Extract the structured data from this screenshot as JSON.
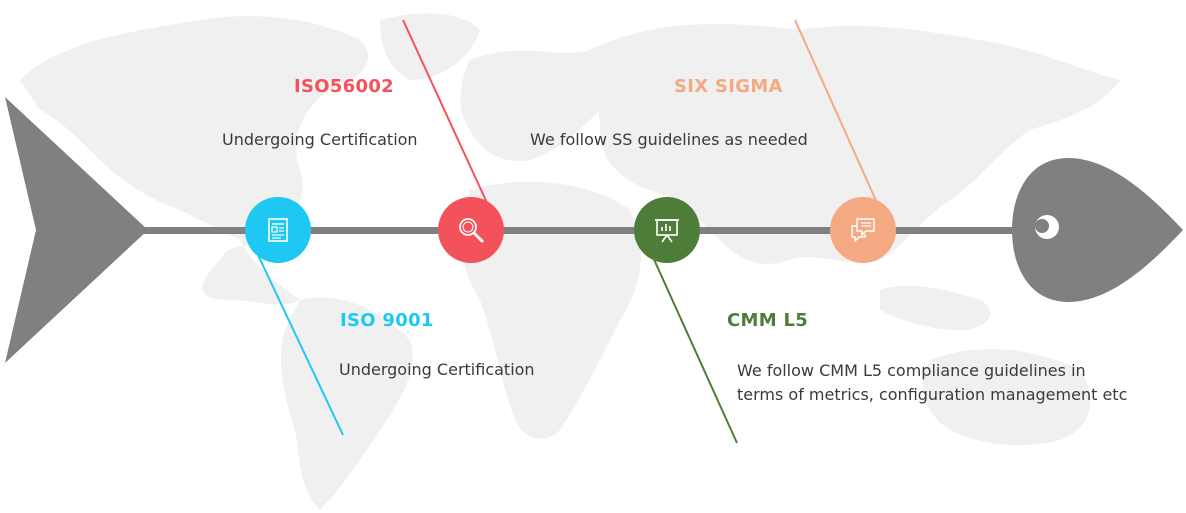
{
  "colors": {
    "iso9001": "#1ec8f2",
    "iso56002": "#f4525b",
    "cmm": "#4e7d3a",
    "sixsigma": "#f5a983",
    "spine": "#808080",
    "map": "#f0f0f0"
  },
  "milestones": [
    {
      "key": "iso9001",
      "heading": "ISO 9001",
      "description": "Undergoing Certification",
      "icon": "document-icon"
    },
    {
      "key": "iso56002",
      "heading": "ISO56002",
      "description": "Undergoing Certification",
      "icon": "magnifier-icon"
    },
    {
      "key": "cmm",
      "heading": "CMM L5",
      "description_lines": [
        "We follow CMM L5 compliance guidelines in",
        "terms of metrics, configuration management etc"
      ],
      "icon": "presentation-chart-icon"
    },
    {
      "key": "sixsigma",
      "heading": "SIX SIGMA",
      "description": "We  follow SS guidelines as needed",
      "icon": "chat-bubbles-icon"
    }
  ]
}
